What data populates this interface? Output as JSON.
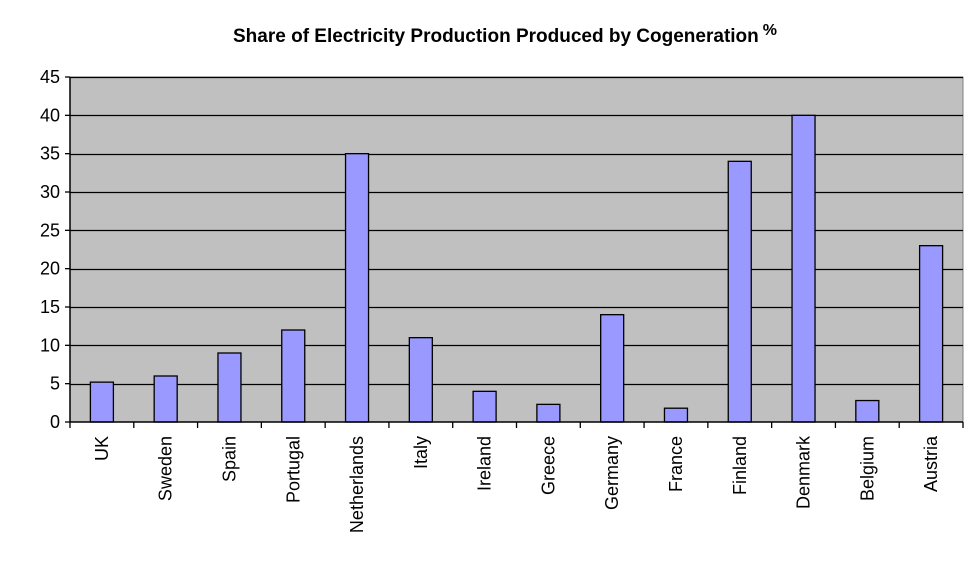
{
  "chart_data": {
    "type": "bar",
    "title": "Share of Electricity Production Produced by Cogeneration",
    "title_unit": "%",
    "categories": [
      "UK",
      "Sweden",
      "Spain",
      "Portugal",
      "Netherlands",
      "Italy",
      "Ireland",
      "Greece",
      "Germany",
      "France",
      "Finland",
      "Denmark",
      "Belgium",
      "Austria"
    ],
    "values": [
      5.2,
      6,
      9,
      12,
      35,
      11,
      4,
      2.3,
      14,
      1.8,
      34,
      40,
      2.8,
      23
    ],
    "xlabel": "",
    "ylabel": "",
    "ylim": [
      0,
      45
    ],
    "yticks": [
      0,
      5,
      10,
      15,
      20,
      25,
      30,
      35,
      40,
      45
    ],
    "grid": true,
    "legend": "none",
    "colors": {
      "plot_background": "#c0c0c0",
      "bar_fill": "#9999ff",
      "bar_stroke": "#000000",
      "gridline": "#000000"
    }
  }
}
